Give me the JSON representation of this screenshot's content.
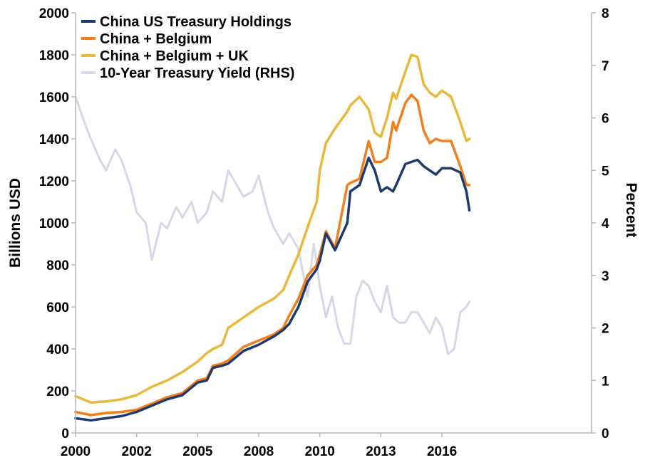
{
  "chart_data": {
    "type": "line",
    "title": "",
    "ylabel": "Billions USD",
    "y2label": "Percent",
    "ylim": [
      0,
      2000
    ],
    "y2lim": [
      0,
      8
    ],
    "xlim": [
      2000.0,
      2016.9
    ],
    "yticks": [
      "0",
      "200",
      "400",
      "600",
      "800",
      "1000",
      "1200",
      "1400",
      "1600",
      "1800",
      "2000"
    ],
    "y2ticks": [
      "0",
      "1",
      "2",
      "3",
      "4",
      "5",
      "6",
      "7",
      "8"
    ],
    "xticks": [
      {
        "value": 2000.0,
        "label": "2000"
      },
      {
        "value": 2002.0,
        "label": "2002"
      },
      {
        "value": 2004.0,
        "label": "2005"
      },
      {
        "value": 2006.0,
        "label": "2008"
      },
      {
        "value": 2008.0,
        "label": "2010"
      },
      {
        "value": 2010.0,
        "label": "2013"
      },
      {
        "value": 2012.0,
        "label": "2016"
      }
    ],
    "legend_position": "top-left",
    "grid": false,
    "series": [
      {
        "name": "China US Treasury Holdings",
        "color": "#1f3a6e",
        "axis": "left",
        "x": [
          2000.0,
          2000.5,
          2001.0,
          2001.5,
          2002.0,
          2002.5,
          2003.0,
          2003.5,
          2004.0,
          2004.3,
          2004.5,
          2004.8,
          2005.0,
          2005.5,
          2006.0,
          2006.5,
          2006.8,
          2007.0,
          2007.3,
          2007.6,
          2007.9,
          2008.0,
          2008.2,
          2008.5,
          2008.9,
          2009.0,
          2009.3,
          2009.6,
          2009.8,
          2010.0,
          2010.2,
          2010.4,
          2010.5,
          2010.8,
          2011.0,
          2011.2,
          2011.4,
          2011.6,
          2011.8,
          2012.0,
          2012.3,
          2012.6,
          2012.8,
          2012.9
        ],
        "y": [
          70,
          60,
          70,
          80,
          100,
          130,
          160,
          180,
          240,
          250,
          310,
          320,
          330,
          390,
          420,
          460,
          490,
          520,
          600,
          720,
          780,
          820,
          950,
          870,
          1000,
          1150,
          1180,
          1310,
          1250,
          1150,
          1170,
          1150,
          1180,
          1280,
          1290,
          1300,
          1270,
          1250,
          1230,
          1260,
          1260,
          1240,
          1150,
          1060
        ]
      },
      {
        "name": "China + Belgium",
        "color": "#f07f1e",
        "axis": "left",
        "x": [
          2000.0,
          2000.5,
          2001.0,
          2001.5,
          2002.0,
          2002.5,
          2003.0,
          2003.5,
          2004.0,
          2004.3,
          2004.5,
          2004.8,
          2005.0,
          2005.5,
          2006.0,
          2006.5,
          2006.8,
          2007.0,
          2007.3,
          2007.6,
          2007.9,
          2008.0,
          2008.2,
          2008.5,
          2008.9,
          2009.0,
          2009.3,
          2009.6,
          2009.8,
          2010.0,
          2010.2,
          2010.4,
          2010.5,
          2010.8,
          2011.0,
          2011.2,
          2011.4,
          2011.6,
          2011.8,
          2012.0,
          2012.3,
          2012.6,
          2012.8,
          2012.9
        ],
        "y": [
          100,
          85,
          95,
          100,
          110,
          140,
          170,
          190,
          250,
          260,
          320,
          330,
          345,
          410,
          440,
          470,
          500,
          560,
          640,
          750,
          800,
          850,
          960,
          880,
          1180,
          1190,
          1210,
          1390,
          1290,
          1290,
          1310,
          1480,
          1440,
          1570,
          1610,
          1580,
          1440,
          1380,
          1400,
          1390,
          1390,
          1270,
          1180,
          1180
        ]
      },
      {
        "name": "China + Belgium + UK",
        "color": "#e8b83a",
        "axis": "left",
        "x": [
          2000.0,
          2000.5,
          2001.0,
          2001.5,
          2002.0,
          2002.5,
          2003.0,
          2003.5,
          2004.0,
          2004.3,
          2004.5,
          2004.8,
          2005.0,
          2005.5,
          2006.0,
          2006.5,
          2006.8,
          2007.0,
          2007.3,
          2007.6,
          2007.9,
          2008.0,
          2008.2,
          2008.5,
          2008.9,
          2009.0,
          2009.3,
          2009.6,
          2009.8,
          2010.0,
          2010.2,
          2010.4,
          2010.5,
          2010.8,
          2011.0,
          2011.2,
          2011.4,
          2011.6,
          2011.8,
          2012.0,
          2012.3,
          2012.6,
          2012.8,
          2012.9
        ],
        "y": [
          175,
          145,
          150,
          160,
          180,
          220,
          250,
          290,
          340,
          380,
          400,
          420,
          500,
          550,
          600,
          640,
          680,
          750,
          850,
          980,
          1100,
          1250,
          1380,
          1450,
          1530,
          1560,
          1600,
          1540,
          1430,
          1410,
          1500,
          1620,
          1590,
          1720,
          1800,
          1790,
          1660,
          1620,
          1600,
          1630,
          1600,
          1480,
          1390,
          1400
        ]
      },
      {
        "name": "10-Year Treasury Yield (RHS)",
        "color": "#d5d8e8",
        "axis": "right",
        "x": [
          2000.0,
          2000.3,
          2000.5,
          2000.8,
          2001.0,
          2001.3,
          2001.5,
          2001.8,
          2002.0,
          2002.3,
          2002.5,
          2002.8,
          2003.0,
          2003.3,
          2003.5,
          2003.8,
          2004.0,
          2004.3,
          2004.5,
          2004.8,
          2005.0,
          2005.3,
          2005.5,
          2005.8,
          2006.0,
          2006.3,
          2006.5,
          2006.8,
          2007.0,
          2007.3,
          2007.6,
          2007.8,
          2008.0,
          2008.2,
          2008.4,
          2008.6,
          2008.8,
          2009.0,
          2009.2,
          2009.4,
          2009.6,
          2009.8,
          2010.0,
          2010.2,
          2010.4,
          2010.6,
          2010.8,
          2011.0,
          2011.2,
          2011.4,
          2011.6,
          2011.8,
          2012.0,
          2012.2,
          2012.4,
          2012.6,
          2012.8,
          2012.9
        ],
        "y": [
          6.4,
          5.9,
          5.6,
          5.2,
          5.0,
          5.4,
          5.2,
          4.7,
          4.2,
          4.0,
          3.3,
          4.0,
          3.9,
          4.3,
          4.1,
          4.4,
          4.0,
          4.2,
          4.6,
          4.4,
          5.0,
          4.7,
          4.5,
          4.6,
          4.9,
          4.2,
          3.9,
          3.6,
          3.8,
          3.5,
          2.6,
          3.6,
          2.8,
          2.2,
          2.6,
          2.0,
          1.7,
          1.7,
          2.6,
          2.9,
          2.8,
          2.5,
          2.3,
          2.8,
          2.2,
          2.1,
          2.1,
          2.3,
          2.3,
          2.1,
          1.9,
          2.2,
          2.0,
          1.5,
          1.6,
          2.3,
          2.4,
          2.5
        ]
      }
    ]
  }
}
